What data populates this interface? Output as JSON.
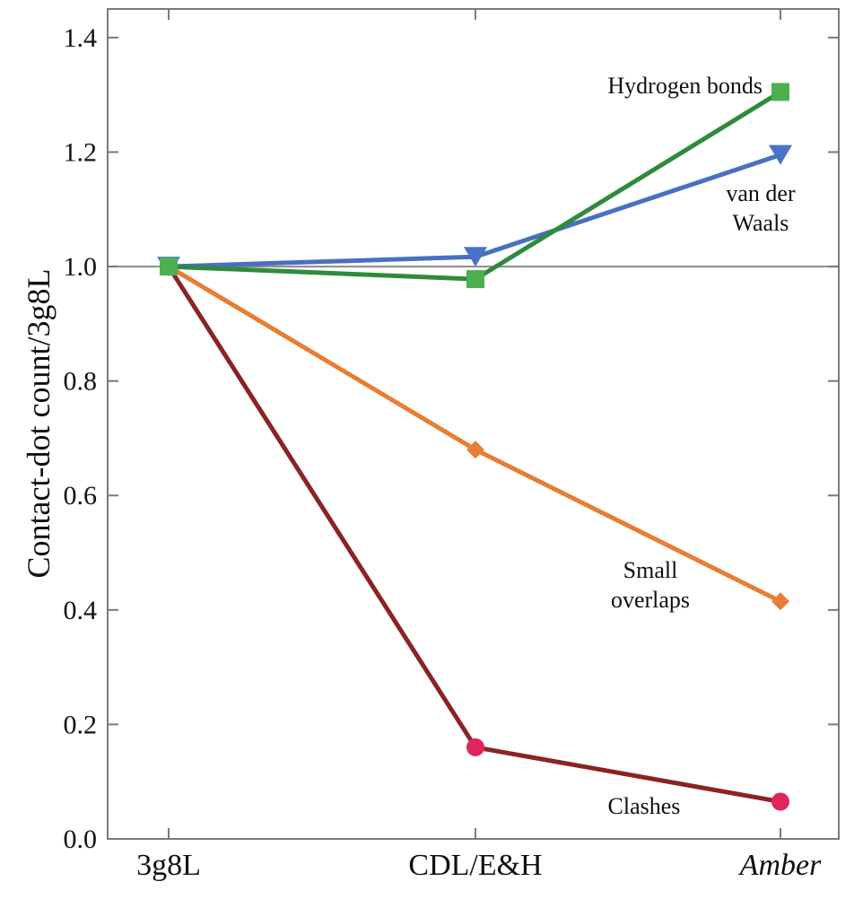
{
  "chart_data": {
    "type": "line",
    "ylabel": "Contact-dot count/3g8L",
    "categories": [
      "3g8L",
      "CDL/E&H",
      "Amber"
    ],
    "ylim": [
      0.0,
      1.45
    ],
    "yticks": [
      "0.0",
      "0.2",
      "0.4",
      "0.6",
      "0.8",
      "1.0",
      "1.2",
      "1.4"
    ],
    "reference_line": 1.0,
    "grid": false,
    "series": [
      {
        "name": "Clashes",
        "values": [
          1.0,
          0.16,
          0.065
        ],
        "color": "#8b2323",
        "marker": "circle",
        "marker_color": "#e0245e"
      },
      {
        "name": "Small overlaps",
        "values": [
          1.0,
          0.68,
          0.415
        ],
        "color": "#e87d33",
        "marker": "diamond",
        "marker_color": "#e87d33"
      },
      {
        "name": "van der Waals",
        "values": [
          1.0,
          1.017,
          1.195
        ],
        "color": "#4a6fbf",
        "marker": "triangle-down",
        "marker_color": "#4a73c8"
      },
      {
        "name": "Hydrogen bonds",
        "values": [
          1.0,
          0.978,
          1.305
        ],
        "color": "#2e8b3c",
        "marker": "square",
        "marker_color": "#4caf50"
      }
    ],
    "annotations": [
      {
        "series": "Hydrogen bonds",
        "lines": [
          "Hydrogen bonds"
        ]
      },
      {
        "series": "van der Waals",
        "lines": [
          "van der",
          "Waals"
        ]
      },
      {
        "series": "Small overlaps",
        "lines": [
          "Small",
          "overlaps"
        ]
      },
      {
        "series": "Clashes",
        "lines": [
          "Clashes"
        ]
      }
    ]
  }
}
